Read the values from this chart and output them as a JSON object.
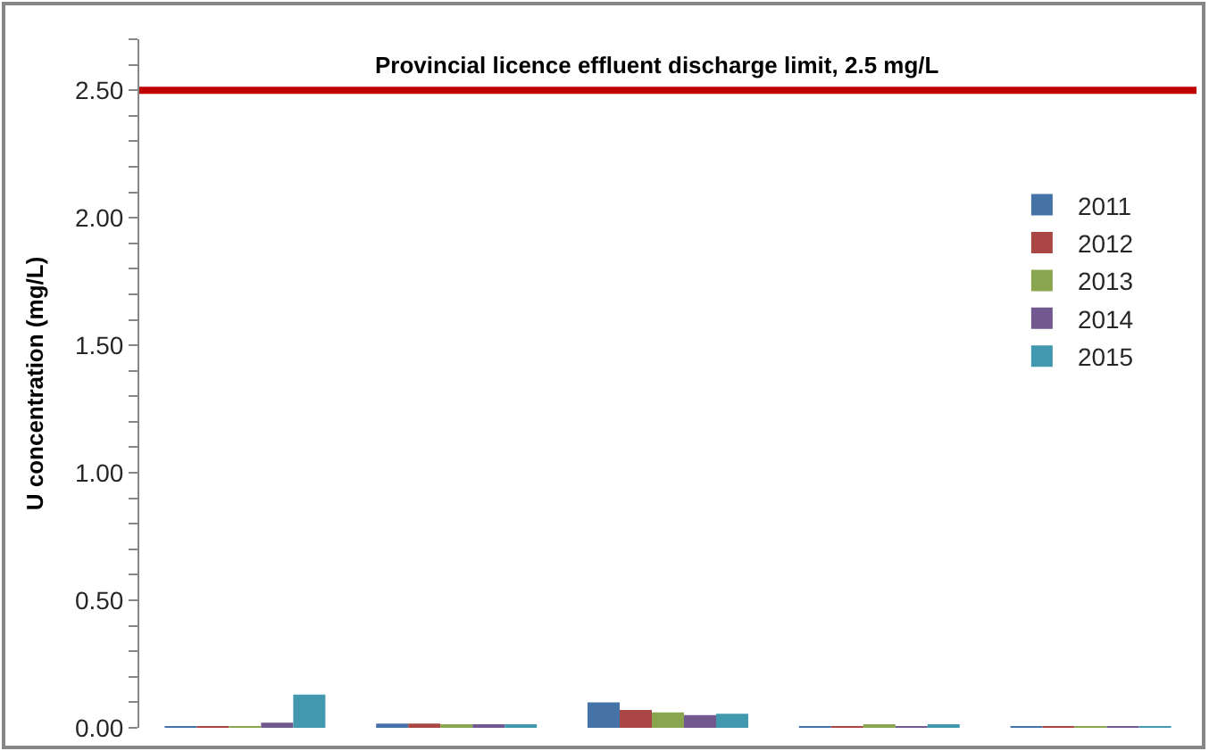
{
  "chart_data": {
    "type": "bar",
    "ylabel": "U concentration (mg/L)",
    "categories": [
      null,
      null,
      null,
      null,
      null
    ],
    "series": [
      {
        "name": "2011",
        "color": "#4572a7",
        "values": [
          0.005,
          0.017,
          0.1,
          0.005,
          0.005
        ]
      },
      {
        "name": "2012",
        "color": "#aa4643",
        "values": [
          0.005,
          0.017,
          0.07,
          0.005,
          0.005
        ]
      },
      {
        "name": "2013",
        "color": "#89a54e",
        "values": [
          0.005,
          0.01,
          0.06,
          0.01,
          0.005
        ]
      },
      {
        "name": "2014",
        "color": "#71588f",
        "values": [
          0.02,
          0.01,
          0.05,
          0.005,
          0.005
        ]
      },
      {
        "name": "2015",
        "color": "#4198af",
        "values": [
          0.13,
          0.01,
          0.055,
          0.01,
          0.005
        ]
      }
    ],
    "ylim": [
      0,
      2.7
    ],
    "yticks": [
      {
        "value": 0,
        "label": "0.00"
      },
      {
        "value": 0.1,
        "label": null
      },
      {
        "value": 0.2,
        "label": null
      },
      {
        "value": 0.3,
        "label": null
      },
      {
        "value": 0.4,
        "label": null
      },
      {
        "value": 0.5,
        "label": "0.50"
      },
      {
        "value": 0.6,
        "label": null
      },
      {
        "value": 0.7,
        "label": null
      },
      {
        "value": 0.8,
        "label": null
      },
      {
        "value": 0.9,
        "label": null
      },
      {
        "value": 1.0,
        "label": "1.00"
      },
      {
        "value": 1.1,
        "label": null
      },
      {
        "value": 1.2,
        "label": null
      },
      {
        "value": 1.3,
        "label": null
      },
      {
        "value": 1.4,
        "label": null
      },
      {
        "value": 1.5,
        "label": "1.50"
      },
      {
        "value": 1.6,
        "label": null
      },
      {
        "value": 1.7,
        "label": null
      },
      {
        "value": 1.8,
        "label": null
      },
      {
        "value": 1.9,
        "label": null
      },
      {
        "value": 2.0,
        "label": "2.00"
      },
      {
        "value": 2.1,
        "label": null
      },
      {
        "value": 2.2,
        "label": null
      },
      {
        "value": 2.3,
        "label": null
      },
      {
        "value": 2.4,
        "label": null
      },
      {
        "value": 2.5,
        "label": "2.50"
      },
      {
        "value": 2.6,
        "label": null
      },
      {
        "value": 2.7,
        "label": null
      }
    ],
    "ref_lines": [
      {
        "axis": "y",
        "value": 2.5,
        "label": "Provincial licence effluent discharge limit, 2.5 mg/L",
        "color": "#c00000"
      }
    ],
    "legend": "right",
    "tick_labels": "y"
  }
}
